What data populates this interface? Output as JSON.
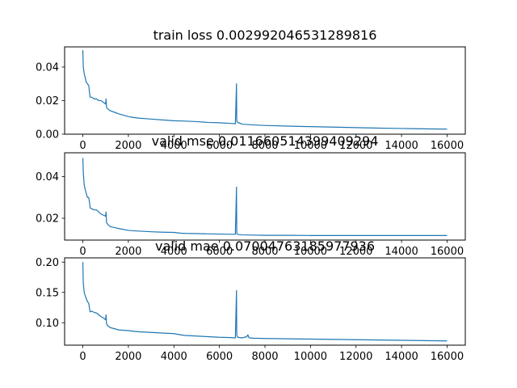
{
  "chart_data": [
    {
      "type": "line",
      "title": "train loss 0.002992046531289816",
      "xlabel": "",
      "ylabel": "",
      "xlim": [
        -800,
        16800
      ],
      "ylim": [
        0,
        0.052
      ],
      "xticks": [
        0,
        2000,
        4000,
        6000,
        8000,
        10000,
        12000,
        14000,
        16000
      ],
      "xtick_labels": [
        "0",
        "2000",
        "4000",
        "6000",
        "8000",
        "10000",
        "12000",
        "14000",
        "16000"
      ],
      "yticks": [
        0,
        0.02,
        0.04
      ],
      "ytick_labels": [
        "0.00",
        "0.02",
        "0.04"
      ],
      "grid": false,
      "line_color": "#1f77b4",
      "series": [
        {
          "x": [
            0,
            20,
            60,
            100,
            150,
            200,
            260,
            300,
            320,
            400,
            500,
            600,
            700,
            800,
            900,
            1000,
            1020,
            1040,
            1100,
            1200,
            1400,
            1600,
            2000,
            2200,
            2500,
            3000,
            3500,
            4000,
            4500,
            5000,
            5500,
            6000,
            6500,
            6700,
            6750,
            6760,
            6770,
            6800,
            6900,
            7000,
            7500,
            8000,
            9000,
            10000,
            11000,
            12000,
            13000,
            14000,
            15000,
            16000
          ],
          "y": [
            0.05,
            0.04,
            0.036,
            0.034,
            0.031,
            0.03,
            0.029,
            0.024,
            0.022,
            0.022,
            0.021,
            0.021,
            0.02,
            0.02,
            0.019,
            0.018,
            0.021,
            0.016,
            0.015,
            0.014,
            0.013,
            0.012,
            0.0105,
            0.01,
            0.0095,
            0.009,
            0.0085,
            0.008,
            0.0078,
            0.0075,
            0.007,
            0.0068,
            0.0064,
            0.0062,
            0.03,
            0.009,
            0.0075,
            0.007,
            0.0065,
            0.006,
            0.0055,
            0.0052,
            0.0048,
            0.0045,
            0.0042,
            0.0039,
            0.0036,
            0.0034,
            0.0032,
            0.003
          ]
        }
      ]
    },
    {
      "type": "line",
      "title": "valid mse 0.011660514399409294",
      "xlabel": "",
      "ylabel": "",
      "xlim": [
        -800,
        16800
      ],
      "ylim": [
        0.0095,
        0.0515
      ],
      "xticks": [
        0,
        2000,
        4000,
        6000,
        8000,
        10000,
        12000,
        14000,
        16000
      ],
      "xtick_labels": [
        "0",
        "2000",
        "4000",
        "6000",
        "8000",
        "10000",
        "12000",
        "14000",
        "16000"
      ],
      "yticks": [
        0.02,
        0.04
      ],
      "ytick_labels": [
        "0.02",
        "0.04"
      ],
      "grid": false,
      "line_color": "#1f77b4",
      "series": [
        {
          "x": [
            0,
            20,
            60,
            100,
            150,
            200,
            260,
            300,
            320,
            400,
            500,
            600,
            700,
            800,
            900,
            1000,
            1020,
            1040,
            1100,
            1200,
            1400,
            1600,
            2000,
            2200,
            2500,
            3000,
            3500,
            4000,
            4300,
            4500,
            5000,
            5500,
            6000,
            6500,
            6700,
            6750,
            6760,
            6770,
            6800,
            7000,
            7500,
            8000,
            9000,
            10000,
            11000,
            12000,
            13000,
            14000,
            15000,
            16000
          ],
          "y": [
            0.049,
            0.042,
            0.036,
            0.034,
            0.032,
            0.03,
            0.03,
            0.027,
            0.025,
            0.0245,
            0.024,
            0.024,
            0.023,
            0.022,
            0.0215,
            0.021,
            0.023,
            0.018,
            0.017,
            0.016,
            0.0155,
            0.015,
            0.0142,
            0.014,
            0.0138,
            0.0135,
            0.0133,
            0.0132,
            0.0128,
            0.0127,
            0.0126,
            0.0125,
            0.0124,
            0.0123,
            0.0123,
            0.035,
            0.014,
            0.0125,
            0.0122,
            0.012,
            0.0119,
            0.0118,
            0.0118,
            0.0117,
            0.0117,
            0.0117,
            0.0117,
            0.0117,
            0.0117,
            0.0117
          ]
        }
      ]
    },
    {
      "type": "line",
      "title": "valid mae 0.07004763185977936",
      "xlabel": "",
      "ylabel": "",
      "xlim": [
        -800,
        16800
      ],
      "ylim": [
        0.063,
        0.207
      ],
      "xticks": [
        0,
        2000,
        4000,
        6000,
        8000,
        10000,
        12000,
        14000,
        16000
      ],
      "xtick_labels": [
        "0",
        "2000",
        "4000",
        "6000",
        "8000",
        "10000",
        "12000",
        "14000",
        "16000"
      ],
      "yticks": [
        0.1,
        0.15,
        0.2
      ],
      "ytick_labels": [
        "0.10",
        "0.15",
        "0.20"
      ],
      "grid": false,
      "line_color": "#1f77b4",
      "series": [
        {
          "x": [
            0,
            20,
            60,
            100,
            150,
            200,
            260,
            300,
            320,
            400,
            500,
            600,
            700,
            800,
            900,
            1000,
            1020,
            1040,
            1100,
            1200,
            1400,
            1600,
            2000,
            2200,
            2500,
            3000,
            3500,
            4000,
            4300,
            4500,
            5000,
            5500,
            6000,
            6500,
            6700,
            6750,
            6760,
            6770,
            6800,
            7000,
            7200,
            7250,
            7300,
            7500,
            8000,
            9000,
            10000,
            11000,
            12000,
            13000,
            14000,
            15000,
            16000
          ],
          "y": [
            0.2,
            0.165,
            0.15,
            0.145,
            0.14,
            0.135,
            0.132,
            0.122,
            0.118,
            0.119,
            0.117,
            0.116,
            0.113,
            0.11,
            0.108,
            0.105,
            0.113,
            0.098,
            0.095,
            0.092,
            0.09,
            0.088,
            0.087,
            0.086,
            0.085,
            0.084,
            0.083,
            0.082,
            0.08,
            0.079,
            0.078,
            0.077,
            0.076,
            0.0755,
            0.075,
            0.153,
            0.085,
            0.078,
            0.076,
            0.075,
            0.077,
            0.08,
            0.075,
            0.0745,
            0.074,
            0.0735,
            0.073,
            0.0725,
            0.072,
            0.0715,
            0.071,
            0.0705,
            0.07
          ]
        }
      ]
    }
  ]
}
